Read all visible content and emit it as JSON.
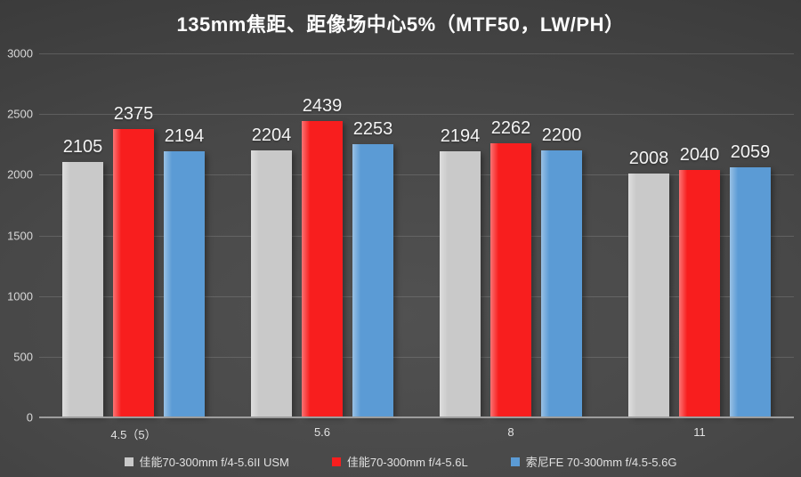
{
  "chart_data": {
    "type": "bar",
    "title": "135mm焦距、距像场中心5%（MTF50，LW/PH）",
    "categories": [
      "4.5（5）",
      "5.6",
      "8",
      "11"
    ],
    "series": [
      {
        "name": "佳能70-300mm f/4-5.6II USM",
        "color": "#c9c9c9",
        "values": [
          2105,
          2204,
          2194,
          2008
        ]
      },
      {
        "name": "佳能70-300mm f/4-5.6L",
        "color": "#f81e1e",
        "values": [
          2375,
          2439,
          2262,
          2040
        ]
      },
      {
        "name": "索尼FE 70-300mm f/4.5-5.6G",
        "color": "#5b9bd5",
        "values": [
          2194,
          2253,
          2200,
          2059
        ]
      }
    ],
    "xlabel": "",
    "ylabel": "",
    "ylim": [
      0,
      3000
    ],
    "y_ticks": [
      0,
      500,
      1000,
      1500,
      2000,
      2500,
      3000
    ],
    "grid": true,
    "legend_position": "bottom",
    "background_color": "#454545",
    "text_color": "#f4f4f4"
  }
}
